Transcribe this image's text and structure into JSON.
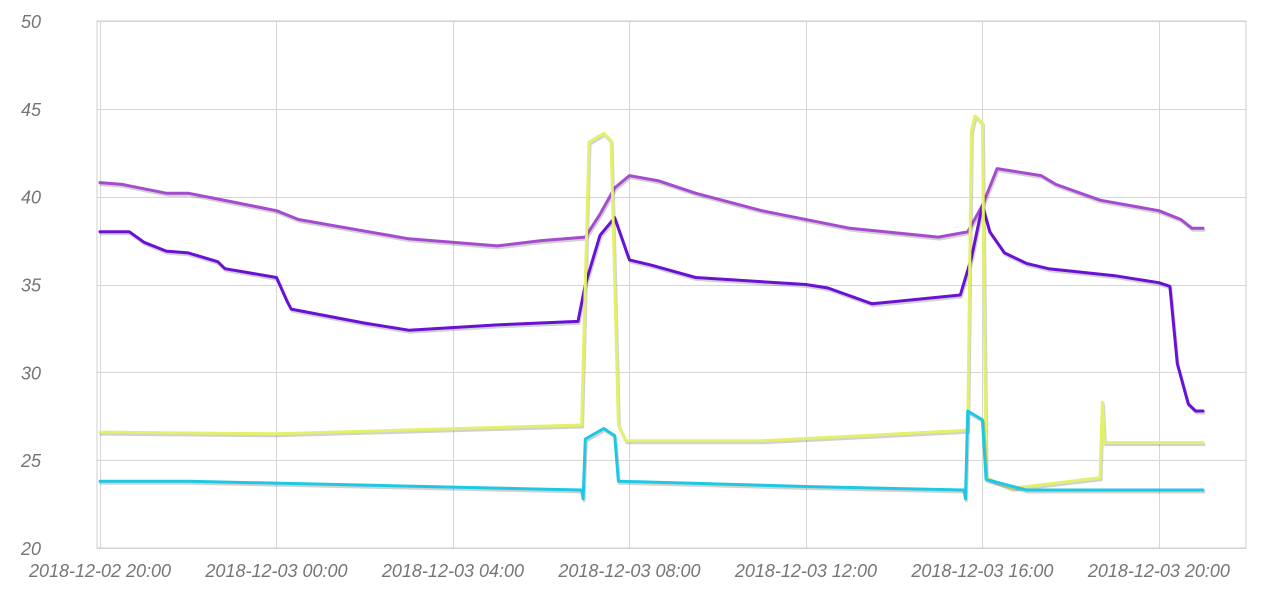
{
  "chart_data": {
    "type": "line",
    "title": "",
    "xlabel": "",
    "ylabel": "",
    "x_unit": "hours",
    "ylim": [
      20,
      50
    ],
    "y_ticks": [
      20,
      25,
      30,
      35,
      40,
      45,
      50
    ],
    "x_range": [
      "2018-12-02 20:00",
      "2018-12-03 21:00"
    ],
    "x_ticks": [
      "2018-12-02 20:00",
      "2018-12-03 00:00",
      "2018-12-03 04:00",
      "2018-12-03 08:00",
      "2018-12-03 12:00",
      "2018-12-03 16:00",
      "2018-12-03 20:00"
    ],
    "grid": true,
    "legend": "none",
    "series": [
      {
        "color": "#a64bd0",
        "points": [
          [
            "2018-12-02 20:00",
            40.8
          ],
          [
            "2018-12-02 20:30",
            40.7
          ],
          [
            "2018-12-02 21:30",
            40.2
          ],
          [
            "2018-12-02 22:00",
            40.2
          ],
          [
            "2018-12-02 23:00",
            39.7
          ],
          [
            "2018-12-03 00:00",
            39.2
          ],
          [
            "2018-12-03 00:30",
            38.7
          ],
          [
            "2018-12-03 03:00",
            37.6
          ],
          [
            "2018-12-03 05:00",
            37.2
          ],
          [
            "2018-12-03 06:00",
            37.5
          ],
          [
            "2018-12-03 07:00",
            37.7
          ],
          [
            "2018-12-03 07:20",
            39.0
          ],
          [
            "2018-12-03 07:40",
            40.5
          ],
          [
            "2018-12-03 08:00",
            41.2
          ],
          [
            "2018-12-03 08:40",
            40.9
          ],
          [
            "2018-12-03 09:30",
            40.2
          ],
          [
            "2018-12-03 11:00",
            39.2
          ],
          [
            "2018-12-03 13:00",
            38.2
          ],
          [
            "2018-12-03 15:00",
            37.7
          ],
          [
            "2018-12-03 15:40",
            38.0
          ],
          [
            "2018-12-03 16:00",
            39.5
          ],
          [
            "2018-12-03 16:20",
            41.6
          ],
          [
            "2018-12-03 17:20",
            41.2
          ],
          [
            "2018-12-03 17:40",
            40.7
          ],
          [
            "2018-12-03 18:40",
            39.8
          ],
          [
            "2018-12-03 20:00",
            39.2
          ],
          [
            "2018-12-03 20:30",
            38.7
          ],
          [
            "2018-12-03 20:45",
            38.2
          ],
          [
            "2018-12-03 21:00",
            38.2
          ]
        ]
      },
      {
        "color": "#6a11d6",
        "points": [
          [
            "2018-12-02 20:00",
            38.0
          ],
          [
            "2018-12-02 20:40",
            38.0
          ],
          [
            "2018-12-02 21:00",
            37.4
          ],
          [
            "2018-12-02 21:30",
            36.9
          ],
          [
            "2018-12-02 22:00",
            36.8
          ],
          [
            "2018-12-02 22:40",
            36.3
          ],
          [
            "2018-12-02 22:50",
            35.9
          ],
          [
            "2018-12-03 00:00",
            35.4
          ],
          [
            "2018-12-03 00:15",
            34.0
          ],
          [
            "2018-12-03 00:20",
            33.6
          ],
          [
            "2018-12-03 02:00",
            32.8
          ],
          [
            "2018-12-03 03:00",
            32.4
          ],
          [
            "2018-12-03 05:00",
            32.7
          ],
          [
            "2018-12-03 06:50",
            32.9
          ],
          [
            "2018-12-03 07:00",
            35.0
          ],
          [
            "2018-12-03 07:20",
            37.8
          ],
          [
            "2018-12-03 07:40",
            38.8
          ],
          [
            "2018-12-03 08:00",
            36.4
          ],
          [
            "2018-12-03 08:30",
            36.1
          ],
          [
            "2018-12-03 09:30",
            35.4
          ],
          [
            "2018-12-03 12:00",
            35.0
          ],
          [
            "2018-12-03 12:30",
            34.8
          ],
          [
            "2018-12-03 13:30",
            33.9
          ],
          [
            "2018-12-03 15:30",
            34.4
          ],
          [
            "2018-12-03 15:45",
            36.5
          ],
          [
            "2018-12-03 16:00",
            39.5
          ],
          [
            "2018-12-03 16:10",
            38.0
          ],
          [
            "2018-12-03 16:30",
            36.8
          ],
          [
            "2018-12-03 17:00",
            36.2
          ],
          [
            "2018-12-03 17:30",
            35.9
          ],
          [
            "2018-12-03 19:00",
            35.5
          ],
          [
            "2018-12-03 20:00",
            35.1
          ],
          [
            "2018-12-03 20:15",
            34.9
          ],
          [
            "2018-12-03 20:25",
            30.5
          ],
          [
            "2018-12-03 20:40",
            28.2
          ],
          [
            "2018-12-03 20:50",
            27.8
          ],
          [
            "2018-12-03 21:00",
            27.8
          ]
        ]
      },
      {
        "color": "#e2f06a",
        "points": [
          [
            "2018-12-02 20:00",
            26.6
          ],
          [
            "2018-12-03 00:00",
            26.5
          ],
          [
            "2018-12-03 06:55",
            27.0
          ],
          [
            "2018-12-03 07:05",
            43.1
          ],
          [
            "2018-12-03 07:25",
            43.6
          ],
          [
            "2018-12-03 07:35",
            43.2
          ],
          [
            "2018-12-03 07:45",
            27.0
          ],
          [
            "2018-12-03 07:55",
            26.1
          ],
          [
            "2018-12-03 11:00",
            26.1
          ],
          [
            "2018-12-03 15:40",
            26.7
          ],
          [
            "2018-12-03 15:45",
            43.7
          ],
          [
            "2018-12-03 15:50",
            44.6
          ],
          [
            "2018-12-03 16:00",
            44.2
          ],
          [
            "2018-12-03 16:05",
            24.0
          ],
          [
            "2018-12-03 16:40",
            23.4
          ],
          [
            "2018-12-03 18:40",
            24.0
          ],
          [
            "2018-12-03 18:43",
            28.3
          ],
          [
            "2018-12-03 18:46",
            26.0
          ],
          [
            "2018-12-03 21:00",
            26.0
          ]
        ]
      },
      {
        "color": "#1ec8e3",
        "points": [
          [
            "2018-12-02 20:00",
            23.8
          ],
          [
            "2018-12-02 22:00",
            23.8
          ],
          [
            "2018-12-03 06:55",
            23.3
          ],
          [
            "2018-12-03 06:57",
            22.8
          ],
          [
            "2018-12-03 07:00",
            26.2
          ],
          [
            "2018-12-03 07:25",
            26.8
          ],
          [
            "2018-12-03 07:40",
            26.4
          ],
          [
            "2018-12-03 07:45",
            23.8
          ],
          [
            "2018-12-03 12:00",
            23.5
          ],
          [
            "2018-12-03 15:35",
            23.3
          ],
          [
            "2018-12-03 15:37",
            22.8
          ],
          [
            "2018-12-03 15:40",
            27.8
          ],
          [
            "2018-12-03 16:00",
            27.3
          ],
          [
            "2018-12-03 16:05",
            23.9
          ],
          [
            "2018-12-03 17:00",
            23.3
          ],
          [
            "2018-12-03 21:00",
            23.3
          ]
        ]
      }
    ]
  }
}
